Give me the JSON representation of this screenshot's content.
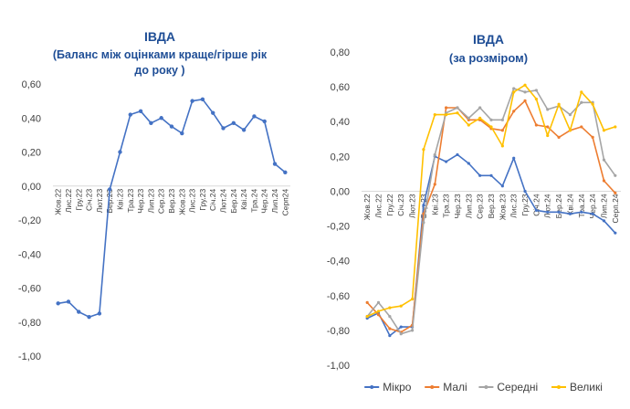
{
  "chart_data": [
    {
      "type": "line",
      "title_lines": [
        "ІВДА",
        "(Баланс між оцінками краще/гірше рік",
        "до року )"
      ],
      "xlabel": "",
      "ylabel": "",
      "ylim": [
        -1.0,
        0.6
      ],
      "ytick_step": 0.2,
      "ytick_labels": [
        "0,60",
        "0,40",
        "0,20",
        "0,00",
        "-0,20",
        "-0,40",
        "-0,60",
        "-0,80",
        "-1,00"
      ],
      "categories": [
        "Жов.22",
        "Лис.22",
        "Гру.22",
        "Січ.23",
        "Лют.23",
        "Бер.23",
        "Кві.23",
        "Тра.23",
        "Чер.23",
        "Лип.23",
        "Сер.23",
        "Вер.23",
        "Жов.23",
        "Лис.23",
        "Гру.23",
        "Січ.24",
        "Лют.24",
        "Бер.24",
        "Кві.24",
        "Тра.24",
        "Чер.24",
        "Лип.24",
        "Серп24"
      ],
      "label_every": 1,
      "grid": false,
      "legend": null,
      "series": [
        {
          "name": "ІВДА",
          "color": "#4472c4",
          "values": [
            -0.69,
            -0.68,
            -0.74,
            -0.77,
            -0.75,
            -0.02,
            0.2,
            0.42,
            0.44,
            0.37,
            0.4,
            0.35,
            0.31,
            0.5,
            0.51,
            0.43,
            0.34,
            0.37,
            0.33,
            0.41,
            0.38,
            0.13,
            0.08
          ]
        }
      ]
    },
    {
      "type": "line",
      "title_lines": [
        "ІВДА",
        "(за розміром)"
      ],
      "xlabel": "",
      "ylabel": "",
      "ylim": [
        -1.0,
        0.8
      ],
      "ytick_step": 0.2,
      "ytick_labels": [
        "0,80",
        "0,60",
        "0,40",
        "0,20",
        "0,00",
        "-0,20",
        "-0,40",
        "-0,60",
        "-0,80",
        "-1,00"
      ],
      "categories": [
        "Жов.22",
        "Лис.22",
        "Гру.22",
        "Січ.23",
        "Лют.23",
        "Бер.23",
        "Кві.23",
        "Тра.23",
        "Чер.23",
        "Лип.23",
        "Сер.23",
        "Вер.23",
        "Жов.23",
        "Лис.23",
        "Гру.23",
        "Січ.24",
        "Лют.24",
        "Бер.24",
        "Кві.24",
        "Тра.24",
        "Чер.24",
        "Лип.24",
        "Серп.24"
      ],
      "label_every": 1,
      "grid": false,
      "legend": "bottom",
      "series": [
        {
          "name": "Мікро",
          "color": "#4472c4",
          "values": [
            -0.73,
            -0.7,
            -0.83,
            -0.78,
            -0.78,
            -0.08,
            0.2,
            0.17,
            0.21,
            0.16,
            0.09,
            0.09,
            0.03,
            0.19,
            0.0,
            -0.11,
            -0.12,
            -0.12,
            -0.13,
            -0.12,
            -0.13,
            -0.17,
            -0.24
          ]
        },
        {
          "name": "Малі",
          "color": "#ed7d31",
          "values": [
            -0.64,
            -0.71,
            -0.79,
            -0.81,
            -0.77,
            -0.13,
            0.04,
            0.48,
            0.48,
            0.41,
            0.41,
            0.36,
            0.35,
            0.46,
            0.52,
            0.38,
            0.37,
            0.31,
            0.35,
            0.37,
            0.31,
            0.06,
            -0.01
          ]
        },
        {
          "name": "Середні",
          "color": "#a5a5a5",
          "values": [
            -0.72,
            -0.64,
            -0.72,
            -0.82,
            -0.8,
            -0.18,
            0.21,
            0.45,
            0.48,
            0.42,
            0.48,
            0.41,
            0.41,
            0.59,
            0.57,
            0.58,
            0.47,
            0.49,
            0.44,
            0.51,
            0.51,
            0.18,
            0.09
          ]
        },
        {
          "name": "Великі",
          "color": "#ffc000",
          "values": [
            -0.72,
            -0.69,
            -0.67,
            -0.66,
            -0.62,
            0.24,
            0.44,
            0.44,
            0.45,
            0.38,
            0.42,
            0.37,
            0.26,
            0.57,
            0.61,
            0.53,
            0.32,
            0.5,
            0.35,
            0.57,
            0.5,
            0.35,
            0.37
          ]
        }
      ]
    }
  ]
}
